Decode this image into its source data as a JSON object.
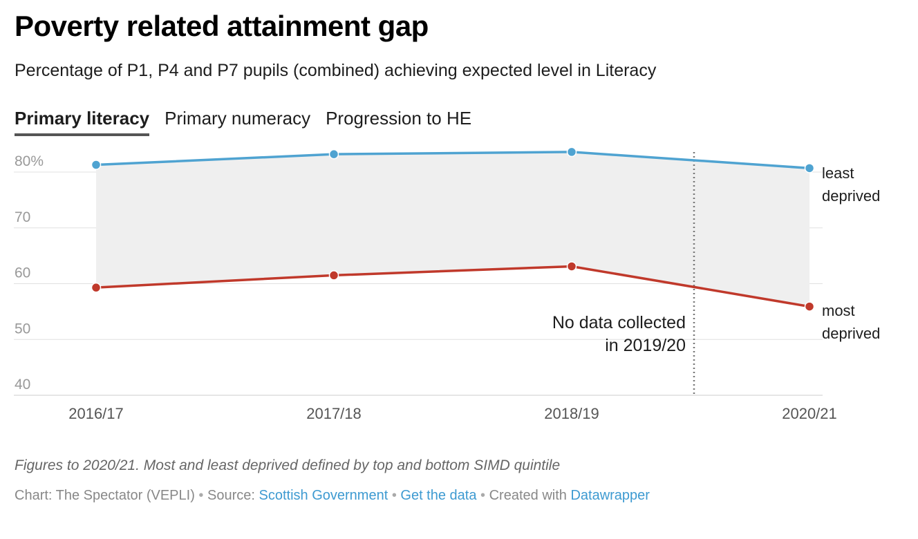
{
  "header": {
    "title": "Poverty related attainment gap",
    "subtitle": "Percentage of P1, P4 and P7 pupils (combined) achieving expected level in Literacy"
  },
  "tabs": [
    {
      "label": "Primary literacy",
      "active": true
    },
    {
      "label": "Primary numeracy",
      "active": false
    },
    {
      "label": "Progression to HE",
      "active": false
    }
  ],
  "chart_data": {
    "type": "line",
    "categories": [
      "2016/17",
      "2017/18",
      "2018/19",
      "2020/21"
    ],
    "x": [
      0,
      1,
      2,
      3
    ],
    "y_ticks": [
      40,
      50,
      60,
      70,
      80
    ],
    "y_tick_labels": [
      "40",
      "50",
      "60",
      "70",
      "80%"
    ],
    "ylim": [
      38,
      88
    ],
    "grid": true,
    "area_between_series": true,
    "series": [
      {
        "name": "least deprived",
        "label_lines": [
          "least",
          "deprived"
        ],
        "color": "#4fa3d1",
        "values": [
          81.3,
          83.2,
          83.6,
          80.7
        ]
      },
      {
        "name": "most deprived",
        "label_lines": [
          "most",
          "deprived"
        ],
        "color": "#c0392b",
        "values": [
          59.3,
          61.5,
          63.1,
          55.9
        ]
      }
    ],
    "annotation": {
      "lines": [
        "No data collected",
        "in 2019/20"
      ],
      "position": "between 2018/19 and 2020/21"
    }
  },
  "footer": {
    "notes": "Figures to 2020/21. Most and least deprived defined by top and bottom SIMD quintile",
    "chart_by": "Chart: The Spectator (VEPLI)",
    "source_label": "Source:",
    "source_link": "Scottish Government",
    "data_link": "Get the data",
    "created_label": "Created with",
    "created_link": "Datawrapper",
    "separator": "•"
  },
  "colors": {
    "gridline": "#e0e0e0",
    "fill": "#efefef",
    "axis_text": "#999999"
  }
}
